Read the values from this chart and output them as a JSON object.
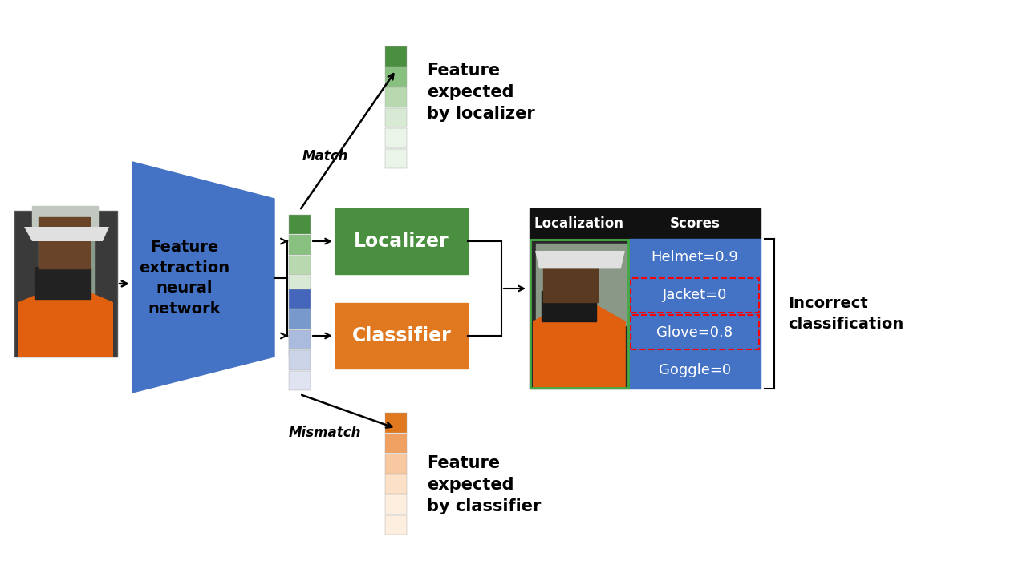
{
  "bg": "#ffffff",
  "green": "#4a8f3f",
  "green_med": "#88c080",
  "green_light": "#b8d8b0",
  "green_lighter": "#d8ead4",
  "green_lightest": "#eaf4e8",
  "orange": "#e07820",
  "orange_med": "#f0a060",
  "orange_light": "#f8c8a0",
  "orange_lighter": "#fce0c8",
  "orange_lightest": "#fdeee0",
  "blue_trap": "#4472c4",
  "blue_scores": "#4472c4",
  "black": "#111111",
  "feature_extraction_label": "Feature\nextraction\nneural\nnetwork",
  "localizer_label": "Localizer",
  "classifier_label": "Classifier",
  "match_label": "Match",
  "mismatch_label": "Mismatch",
  "feature_localizer_label": "Feature\nexpected\nby localizer",
  "feature_classifier_label": "Feature\nexpected\nby classifier",
  "incorrect_label": "Incorrect\nclassification",
  "localization_label": "Localization",
  "scores_label": "Scores",
  "scores": [
    "Helmet=0.9",
    "Jacket=0",
    "Glove=0.8",
    "Goggle=0"
  ],
  "red_border_rows": [
    1,
    2
  ]
}
